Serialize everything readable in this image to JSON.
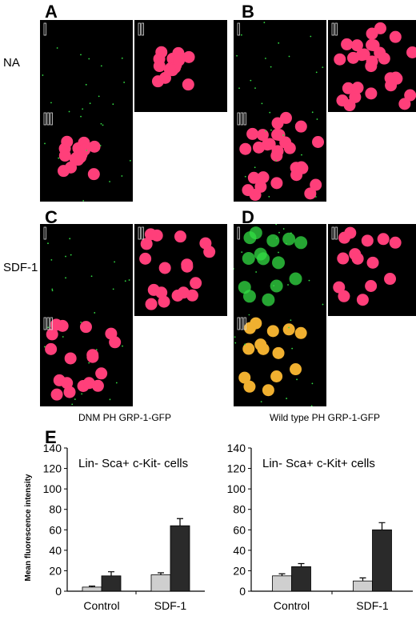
{
  "row_labels": {
    "na": "NA",
    "sdf1": "SDF-1"
  },
  "panels": [
    {
      "letter": "A",
      "condition": "NA",
      "construct": "DNM",
      "channels": [
        "i",
        "ii",
        "iii"
      ]
    },
    {
      "letter": "B",
      "condition": "NA",
      "construct": "WT",
      "channels": [
        "i",
        "ii",
        "iii"
      ]
    },
    {
      "letter": "C",
      "condition": "SDF-1",
      "construct": "DNM",
      "channels": [
        "i",
        "ii",
        "iii"
      ]
    },
    {
      "letter": "D",
      "condition": "SDF-1",
      "construct": "WT",
      "channels": [
        "i",
        "ii",
        "iii"
      ]
    }
  ],
  "captions": {
    "left": "DNM PH GRP-1-GFP",
    "right": "Wild type PH GRP-1-GFP"
  },
  "panel_e_letter": "E",
  "colors": {
    "cell_red": "#ff3f7a",
    "gfp_green": "#33dd44",
    "merge_yellow": "#f0b030",
    "bar_light": "#cfcfcf",
    "bar_dark": "#2a2a2a"
  },
  "chart_data": [
    {
      "type": "bar",
      "title": "Lin- Sca+ c-Kit- cells",
      "ylabel": "Mean fluorescence intensity",
      "categories": [
        "Control",
        "SDF-1"
      ],
      "ylim": [
        0,
        140
      ],
      "yticks": [
        0,
        20,
        40,
        60,
        80,
        100,
        120,
        140
      ],
      "series": [
        {
          "values": [
            4,
            16
          ],
          "errors": [
            1,
            2
          ],
          "color": "#cfcfcf"
        },
        {
          "values": [
            15,
            64
          ],
          "errors": [
            4,
            7
          ],
          "color": "#2a2a2a"
        }
      ]
    },
    {
      "type": "bar",
      "title": "Lin- Sca+ c-Kit+ cells",
      "ylabel": "",
      "categories": [
        "Control",
        "SDF-1"
      ],
      "ylim": [
        0,
        140
      ],
      "yticks": [
        0,
        20,
        40,
        60,
        80,
        100,
        120,
        140
      ],
      "series": [
        {
          "values": [
            15,
            10
          ],
          "errors": [
            2,
            3
          ],
          "color": "#cfcfcf"
        },
        {
          "values": [
            24,
            60
          ],
          "errors": [
            3,
            7
          ],
          "color": "#2a2a2a"
        }
      ]
    }
  ]
}
